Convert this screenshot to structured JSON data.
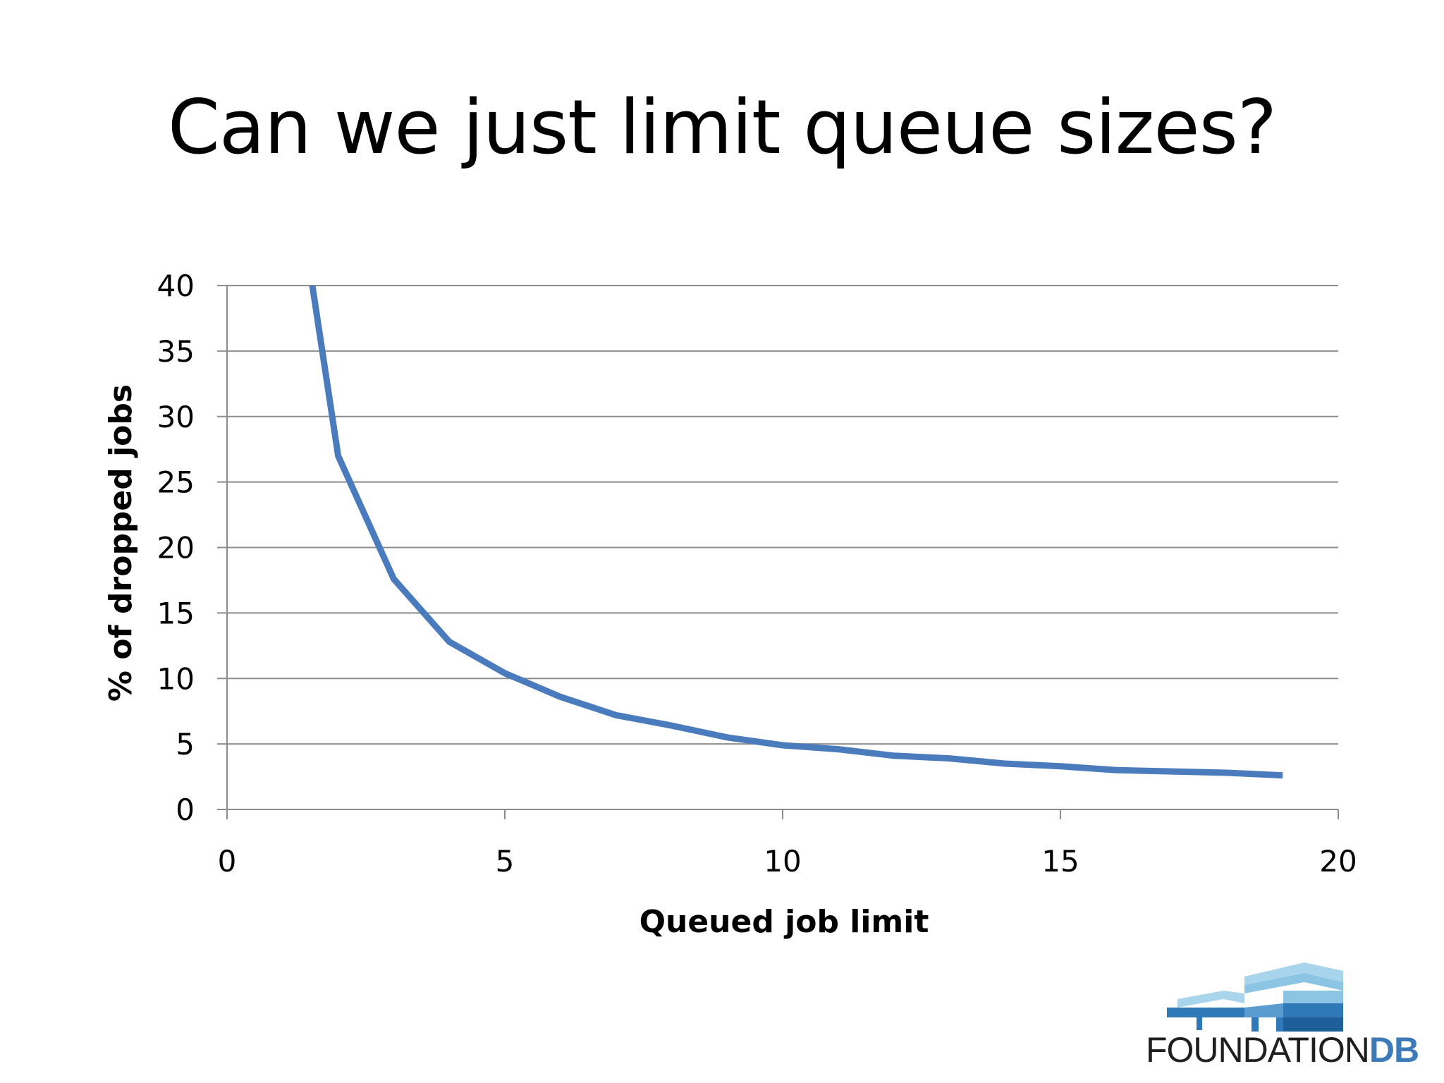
{
  "slide": {
    "title": "Can we just limit queue sizes?"
  },
  "logo": {
    "text_part1": "FOUNDATION",
    "text_part2": "DB",
    "icon": "building-blocks-icon"
  },
  "colors": {
    "line": "#4a7bbd",
    "grid": "#8c8c8c",
    "axis": "#8c8c8c",
    "text": "#000000",
    "logo_light": "#a8d4ec",
    "logo_dark": "#2f79b8"
  },
  "chart_data": {
    "type": "line",
    "title": "",
    "xlabel": "Queued job limit",
    "ylabel": "% of dropped jobs",
    "xlim": [
      0,
      20
    ],
    "ylim": [
      0,
      40
    ],
    "x_ticks": [
      0,
      5,
      10,
      15,
      20
    ],
    "y_ticks": [
      0,
      5,
      10,
      15,
      20,
      25,
      30,
      35,
      40
    ],
    "grid": true,
    "legend": "none",
    "clip_top": true,
    "series": [
      {
        "x": [
          1,
          2,
          3,
          4,
          5,
          6,
          7,
          8,
          9,
          10,
          11,
          12,
          13,
          14,
          15,
          16,
          17,
          18,
          19
        ],
        "y": [
          55,
          27,
          17.6,
          12.8,
          10.4,
          8.6,
          7.2,
          6.4,
          5.5,
          4.9,
          4.6,
          4.1,
          3.9,
          3.5,
          3.3,
          3.0,
          2.9,
          2.8,
          2.6
        ]
      }
    ]
  }
}
